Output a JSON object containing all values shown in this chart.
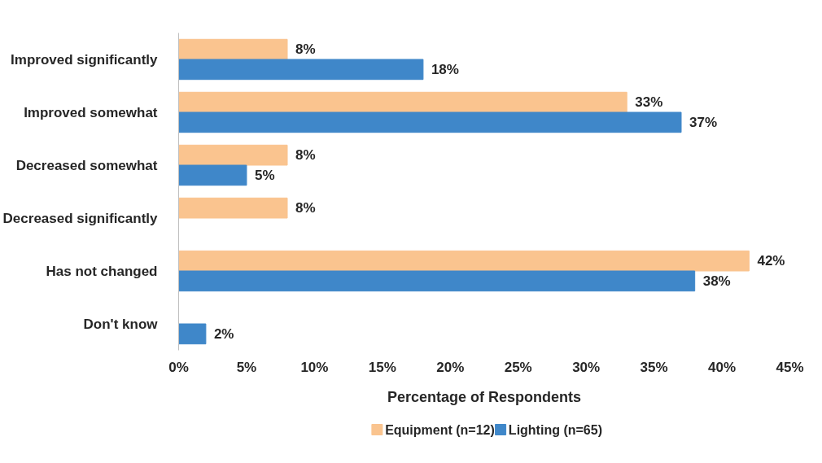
{
  "chart_data": {
    "type": "bar",
    "orientation": "horizontal",
    "xlabel": "Percentage of Respondents",
    "categories": [
      "Improved significantly",
      "Improved somewhat",
      "Decreased somewhat",
      "Decreased significantly",
      "Has not changed",
      "Don't know"
    ],
    "series": [
      {
        "name": "Equipment (n=12)",
        "color": "#fac48f",
        "values": [
          8,
          33,
          8,
          8,
          42,
          null
        ],
        "value_labels": [
          "8%",
          "33%",
          "8%",
          "8%",
          "42%",
          null
        ]
      },
      {
        "name": "Lighting (n=65)",
        "color": "#3f87c9",
        "values": [
          18,
          37,
          5,
          null,
          38,
          2
        ],
        "value_labels": [
          "18%",
          "37%",
          "5%",
          null,
          "38%",
          "2%"
        ]
      }
    ],
    "xlim": [
      0,
      45
    ],
    "xticks": [
      {
        "value": 0,
        "label": "0%"
      },
      {
        "value": 5,
        "label": "5%"
      },
      {
        "value": 10,
        "label": "10%"
      },
      {
        "value": 15,
        "label": "15%"
      },
      {
        "value": 20,
        "label": "20%"
      },
      {
        "value": 25,
        "label": "25%"
      },
      {
        "value": 30,
        "label": "30%"
      },
      {
        "value": 35,
        "label": "35%"
      },
      {
        "value": 40,
        "label": "40%"
      },
      {
        "value": 45,
        "label": "45%"
      }
    ],
    "grid": false,
    "legend": "bottom"
  }
}
